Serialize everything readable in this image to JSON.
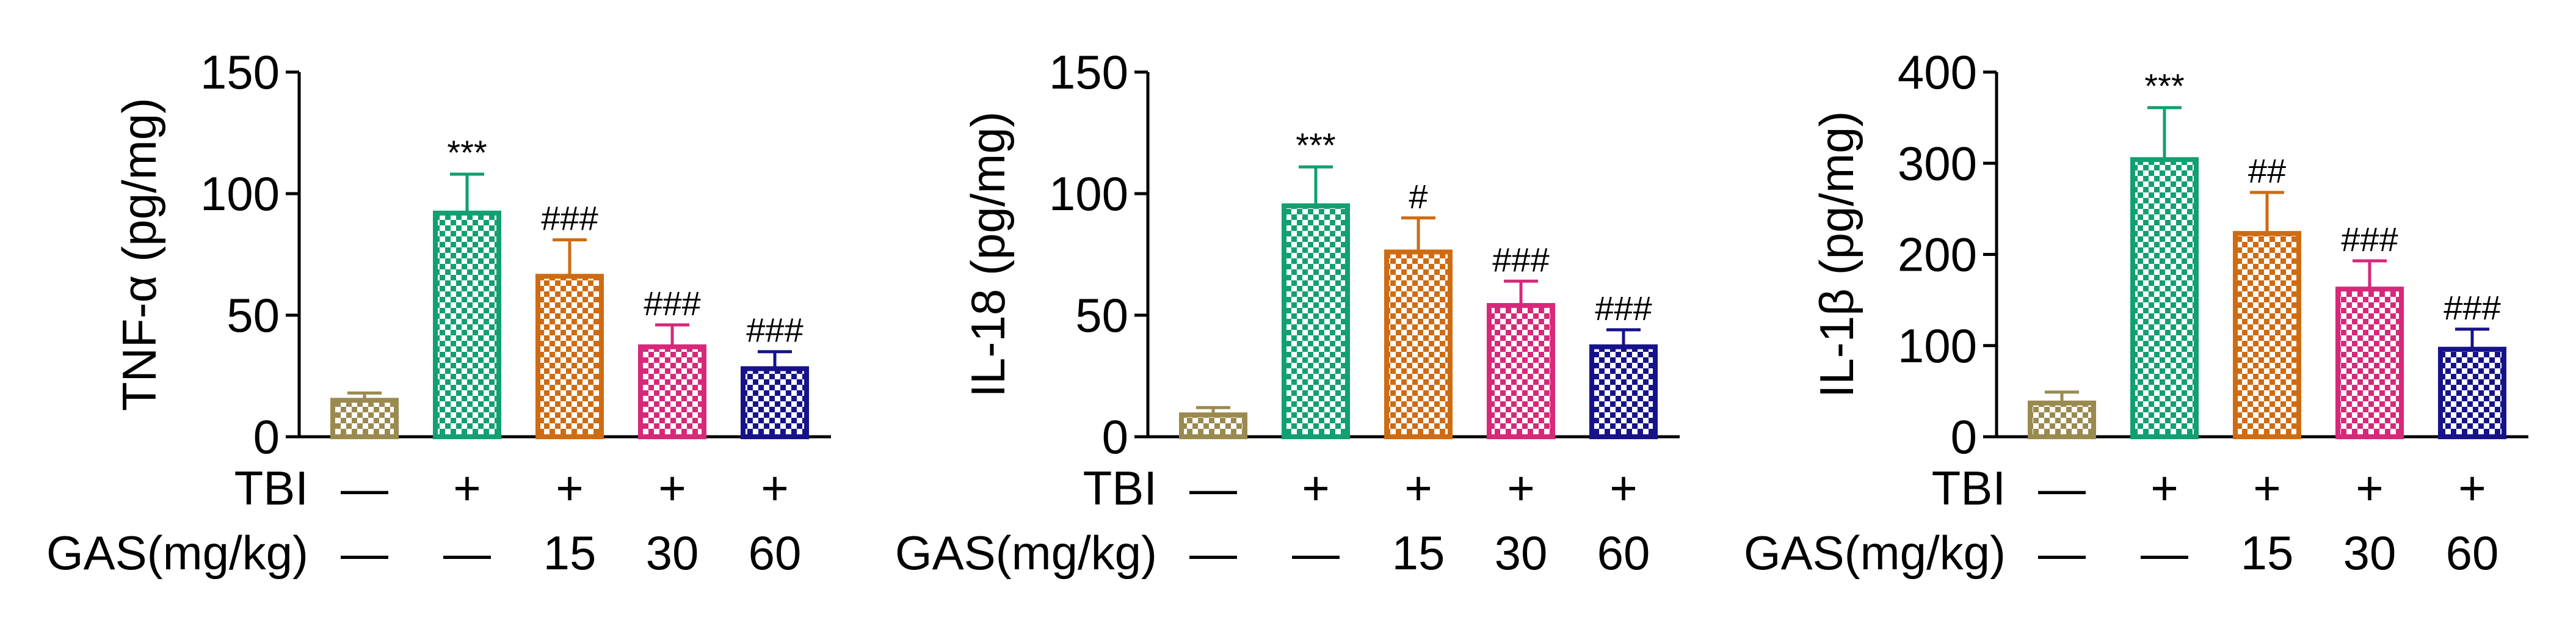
{
  "chart_data": [
    {
      "type": "bar",
      "ylabel": "TNF-α (pg/mg)",
      "ylim": [
        0,
        150
      ],
      "yticks": [
        0,
        50,
        100,
        150
      ],
      "values": [
        15,
        92,
        66,
        37,
        28
      ],
      "errors": [
        3,
        16,
        15,
        9,
        7
      ],
      "annotations": [
        "",
        "***",
        "###",
        "###",
        "###"
      ]
    },
    {
      "type": "bar",
      "ylabel": "IL-18 (pg/mg)",
      "ylim": [
        0,
        150
      ],
      "yticks": [
        0,
        50,
        100,
        150
      ],
      "values": [
        9,
        95,
        76,
        54,
        37
      ],
      "errors": [
        3,
        16,
        14,
        10,
        7
      ],
      "annotations": [
        "",
        "***",
        "#",
        "###",
        "###"
      ]
    },
    {
      "type": "bar",
      "ylabel": "IL-1β (pg/mg)",
      "ylim": [
        0,
        400
      ],
      "yticks": [
        0,
        100,
        200,
        300,
        400
      ],
      "values": [
        37,
        304,
        223,
        162,
        96
      ],
      "errors": [
        12,
        57,
        45,
        31,
        22
      ],
      "annotations": [
        "",
        "***",
        "##",
        "###",
        "###"
      ]
    }
  ],
  "groups": {
    "tbi_label": "TBI",
    "tbi": [
      "—",
      "+",
      "+",
      "+",
      "+"
    ],
    "gas_label": "GAS(mg/kg)",
    "gas": [
      "—",
      "—",
      "15",
      "30",
      "60"
    ]
  },
  "colors": [
    "#9a8a50",
    "#129f72",
    "#cf6b12",
    "#d7287a",
    "#16138a"
  ]
}
